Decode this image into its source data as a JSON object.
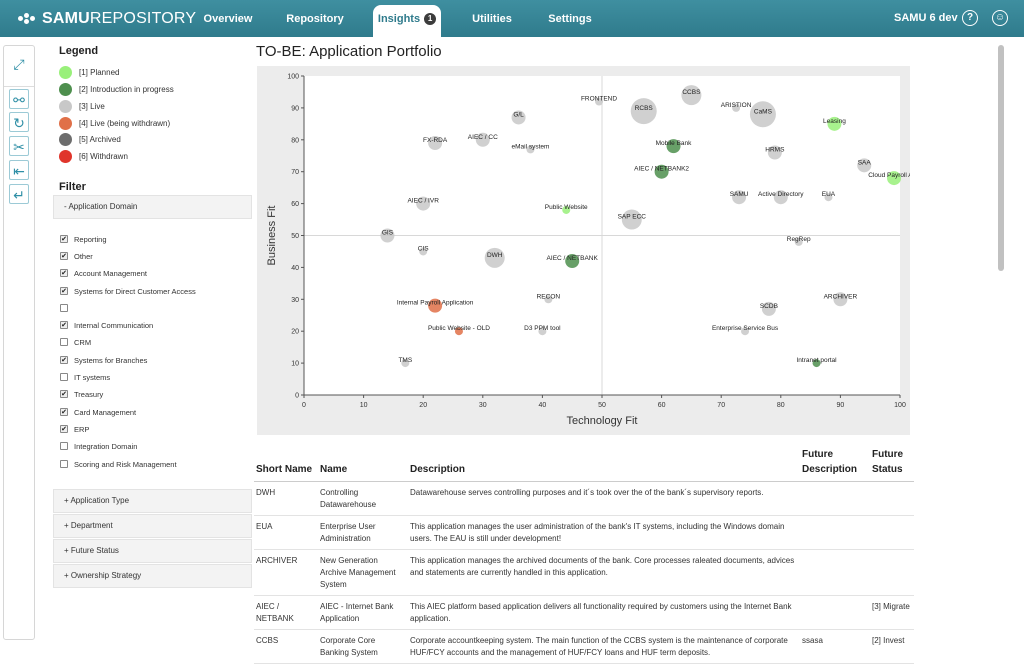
{
  "app": {
    "logo_bold": "SAMU",
    "logo_light": "REPOSITORY",
    "nav": [
      {
        "label": "Overview"
      },
      {
        "label": "Repository"
      },
      {
        "label": "Insights",
        "badge": "1"
      },
      {
        "label": "Utilities"
      },
      {
        "label": "Settings"
      }
    ],
    "user": "SAMU 6 dev",
    "help_glyph": "?",
    "account_glyph": "☺"
  },
  "toolbar": {
    "icons": [
      "expand-icon",
      "link-icon",
      "refresh-icon",
      "tools-icon",
      "export-icon",
      "return-icon"
    ],
    "glyphs": [
      "⤢",
      "⚯",
      "↻",
      "✂",
      "⇤",
      "↵"
    ]
  },
  "legend": {
    "title": "Legend",
    "items": [
      {
        "label": "[1] Planned",
        "color": "#99f07a"
      },
      {
        "label": "[2] Introduction in progress",
        "color": "#4e8f4e"
      },
      {
        "label": "[3] Live",
        "color": "#c8c8c8"
      },
      {
        "label": "[4] Live (being withdrawn)",
        "color": "#e07048"
      },
      {
        "label": "[5] Archived",
        "color": "#6d6d6d"
      },
      {
        "label": "[6] Withdrawn",
        "color": "#e0352b"
      }
    ]
  },
  "filter": {
    "title": "Filter",
    "open_panel": "- Application Domain",
    "domains": [
      {
        "label": "Reporting",
        "checked": true
      },
      {
        "label": "Other",
        "checked": true
      },
      {
        "label": "Account Management",
        "checked": true
      },
      {
        "label": "Systems for Direct Customer Access",
        "checked": true
      },
      {
        "label": "",
        "checked": false
      },
      {
        "label": "Internal Communication",
        "checked": true
      },
      {
        "label": "CRM",
        "checked": false
      },
      {
        "label": "Systems for Branches",
        "checked": true
      },
      {
        "label": "IT systems",
        "checked": false
      },
      {
        "label": "Treasury",
        "checked": true
      },
      {
        "label": "Card Management",
        "checked": true
      },
      {
        "label": "ERP",
        "checked": true
      },
      {
        "label": "Integration Domain",
        "checked": false
      },
      {
        "label": "Scoring and Risk Management",
        "checked": false
      }
    ],
    "panels": [
      "+ Application Type",
      "+ Department",
      "+ Future Status",
      "+ Ownership Strategy"
    ]
  },
  "main": {
    "title": "TO-BE: Application Portfolio"
  },
  "chart_data": {
    "type": "scatter",
    "title": "",
    "xlabel": "Technology Fit",
    "ylabel": "Business Fit",
    "xlim": [
      0,
      100
    ],
    "ylim": [
      0,
      100
    ],
    "xticks": [
      0,
      10,
      20,
      30,
      40,
      50,
      60,
      70,
      80,
      90,
      100
    ],
    "yticks": [
      0,
      10,
      20,
      30,
      40,
      50,
      60,
      70,
      80,
      90,
      100
    ],
    "grid": false,
    "midlines": [
      50,
      50
    ],
    "points": [
      {
        "label": "CCBS",
        "x": 65,
        "y": 94,
        "size": 3,
        "status": "live"
      },
      {
        "label": "FRONTEND",
        "x": 49.5,
        "y": 92,
        "size": 1,
        "status": "live"
      },
      {
        "label": "RCBS",
        "x": 57,
        "y": 89,
        "size": 4,
        "status": "live"
      },
      {
        "label": "ARISTION",
        "x": 72.5,
        "y": 90,
        "size": 1,
        "status": "live"
      },
      {
        "label": "CaMS",
        "x": 77,
        "y": 88,
        "size": 4,
        "status": "live"
      },
      {
        "label": "G/L",
        "x": 36,
        "y": 87,
        "size": 2,
        "status": "live"
      },
      {
        "label": "Leasing",
        "x": 89,
        "y": 85,
        "size": 2,
        "status": "planned"
      },
      {
        "label": "FX-RDA",
        "x": 22,
        "y": 79,
        "size": 2,
        "status": "live"
      },
      {
        "label": "AIEC / CC",
        "x": 30,
        "y": 80,
        "size": 2,
        "status": "live"
      },
      {
        "label": "eMail system",
        "x": 38,
        "y": 77,
        "size": 1,
        "status": "live"
      },
      {
        "label": "Mobile Bank",
        "x": 62,
        "y": 78,
        "size": 2,
        "status": "intro"
      },
      {
        "label": "HRMS",
        "x": 79,
        "y": 76,
        "size": 2,
        "status": "live"
      },
      {
        "label": "AIEC / NETBANK2",
        "x": 60,
        "y": 70,
        "size": 2,
        "status": "intro"
      },
      {
        "label": "SAA",
        "x": 94,
        "y": 72,
        "size": 2,
        "status": "live"
      },
      {
        "label": "Cloud Payroll App",
        "x": 99,
        "y": 68,
        "size": 2,
        "status": "planned"
      },
      {
        "label": "SAMU",
        "x": 73,
        "y": 62,
        "size": 2,
        "status": "live"
      },
      {
        "label": "Active Directory",
        "x": 80,
        "y": 62,
        "size": 2,
        "status": "live"
      },
      {
        "label": "EUA",
        "x": 88,
        "y": 62,
        "size": 1,
        "status": "live"
      },
      {
        "label": "AIEC / IVR",
        "x": 20,
        "y": 60,
        "size": 2,
        "status": "live"
      },
      {
        "label": "Public Website",
        "x": 44,
        "y": 58,
        "size": 1,
        "status": "planned"
      },
      {
        "label": "SAP ECC",
        "x": 55,
        "y": 55,
        "size": 3,
        "status": "live"
      },
      {
        "label": "GIS",
        "x": 14,
        "y": 50,
        "size": 2,
        "status": "live"
      },
      {
        "label": "RegRep",
        "x": 83,
        "y": 48,
        "size": 1,
        "status": "live"
      },
      {
        "label": "CIS",
        "x": 20,
        "y": 45,
        "size": 1,
        "status": "live"
      },
      {
        "label": "DWH",
        "x": 32,
        "y": 43,
        "size": 3,
        "status": "live"
      },
      {
        "label": "AIEC / NETBANK",
        "x": 45,
        "y": 42,
        "size": 2,
        "status": "intro"
      },
      {
        "label": "RECON",
        "x": 41,
        "y": 30,
        "size": 1,
        "status": "live"
      },
      {
        "label": "ARCHIVER",
        "x": 90,
        "y": 30,
        "size": 2,
        "status": "live"
      },
      {
        "label": "Internal Payroll Application",
        "x": 22,
        "y": 28,
        "size": 2,
        "status": "withdrawing"
      },
      {
        "label": "SCDB",
        "x": 78,
        "y": 27,
        "size": 2,
        "status": "live"
      },
      {
        "label": "Public Website - OLD",
        "x": 26,
        "y": 20,
        "size": 1,
        "status": "withdrawing"
      },
      {
        "label": "D3 PPM tool",
        "x": 40,
        "y": 20,
        "size": 1,
        "status": "live"
      },
      {
        "label": "Enterprise Service Bus",
        "x": 74,
        "y": 20,
        "size": 1,
        "status": "live"
      },
      {
        "label": "TMS",
        "x": 17,
        "y": 10,
        "size": 1,
        "status": "live"
      },
      {
        "label": "Intranet portal",
        "x": 86,
        "y": 10,
        "size": 1,
        "status": "intro"
      }
    ]
  },
  "table": {
    "headers": [
      "Short Name",
      "Name",
      "Description",
      "Future Description",
      "Future Status"
    ],
    "rows": [
      [
        "DWH",
        "Controlling Datawarehouse",
        "Datawarehouse serves controlling purposes and it´s took over the of the bank´s supervisory reports.",
        "",
        ""
      ],
      [
        "EUA",
        "Enterprise User Administration",
        "This application manages the user administration of the bank's IT systems, including the Windows domain users. The EAU is still under development!",
        "",
        ""
      ],
      [
        "ARCHIVER",
        "New Generation Archive Management System",
        "This application manages the archived documents of the bank. Core processes raleated documents, advices and statements are currently handled in this application.",
        "",
        ""
      ],
      [
        "AIEC / NETBANK",
        "AIEC - Internet Bank Application",
        "This AIEC platform based application delivers all functionality required by customers using the Internet Bank application.",
        "",
        "[3] Migrate"
      ],
      [
        "CCBS",
        "Corporate Core Banking System",
        "Corporate accountkeeping system. The main function of the CCBS system is the maintenance of corporate HUF/FCY accounts and the management of HUF/FCY loans and HUF term deposits.",
        "ssasa",
        "[2] Invest"
      ]
    ]
  }
}
